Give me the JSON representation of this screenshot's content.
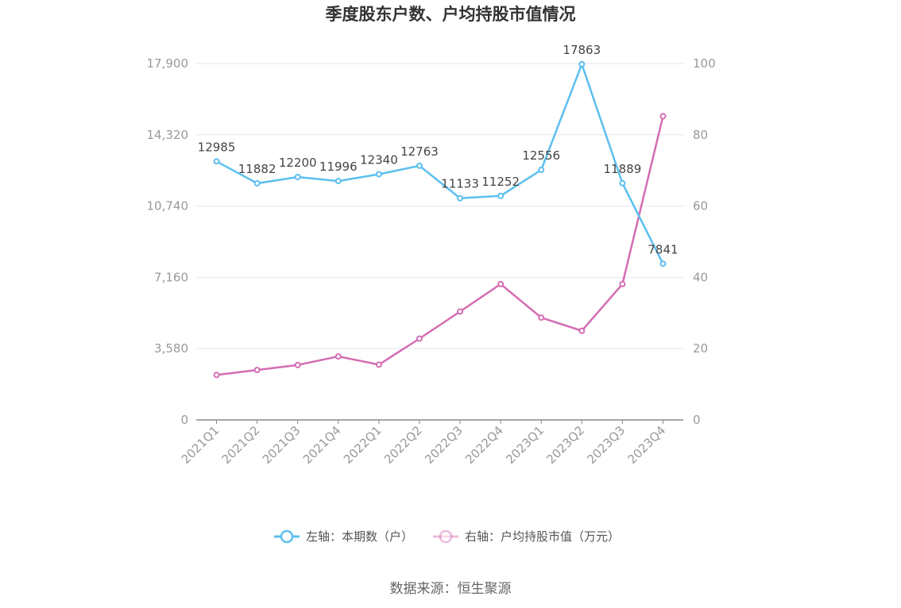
{
  "chart_data": {
    "type": "line",
    "title": "季度股东户数、户均持股市值情况",
    "categories": [
      "2021Q1",
      "2021Q2",
      "2021Q3",
      "2021Q4",
      "2022Q1",
      "2022Q2",
      "2022Q3",
      "2022Q4",
      "2023Q1",
      "2023Q2",
      "2023Q3",
      "2023Q4"
    ],
    "left_axis": {
      "min": 0,
      "max": 17900,
      "ticks": [
        "0",
        "3,580",
        "7,160",
        "10,740",
        "14,320",
        "17,900"
      ]
    },
    "right_axis": {
      "min": 0,
      "max": 100,
      "ticks": [
        "0",
        "20",
        "40",
        "60",
        "80",
        "100"
      ]
    },
    "series": [
      {
        "name": "左轴：本期数（户）",
        "axis": "left",
        "color": "#5bbfef",
        "values": [
          12985,
          11882,
          12200,
          11996,
          12340,
          12763,
          11133,
          11252,
          12556,
          17863,
          11889,
          7841
        ],
        "labels": [
          "12985",
          "11882",
          "12200",
          "11996",
          "12340",
          "12763",
          "11133",
          "11252",
          "12556",
          "17863",
          "11889",
          "7841"
        ]
      },
      {
        "name": "右轴：户均持股市值（万元）",
        "axis": "right",
        "color": "#d36db3",
        "values": [
          12.6,
          14.0,
          15.4,
          17.8,
          15.5,
          22.8,
          30.4,
          38.1,
          28.7,
          25.0,
          38.1,
          85.2
        ]
      }
    ],
    "legend_position": "bottom",
    "grid": true,
    "source": "数据来源：恒生聚源"
  }
}
